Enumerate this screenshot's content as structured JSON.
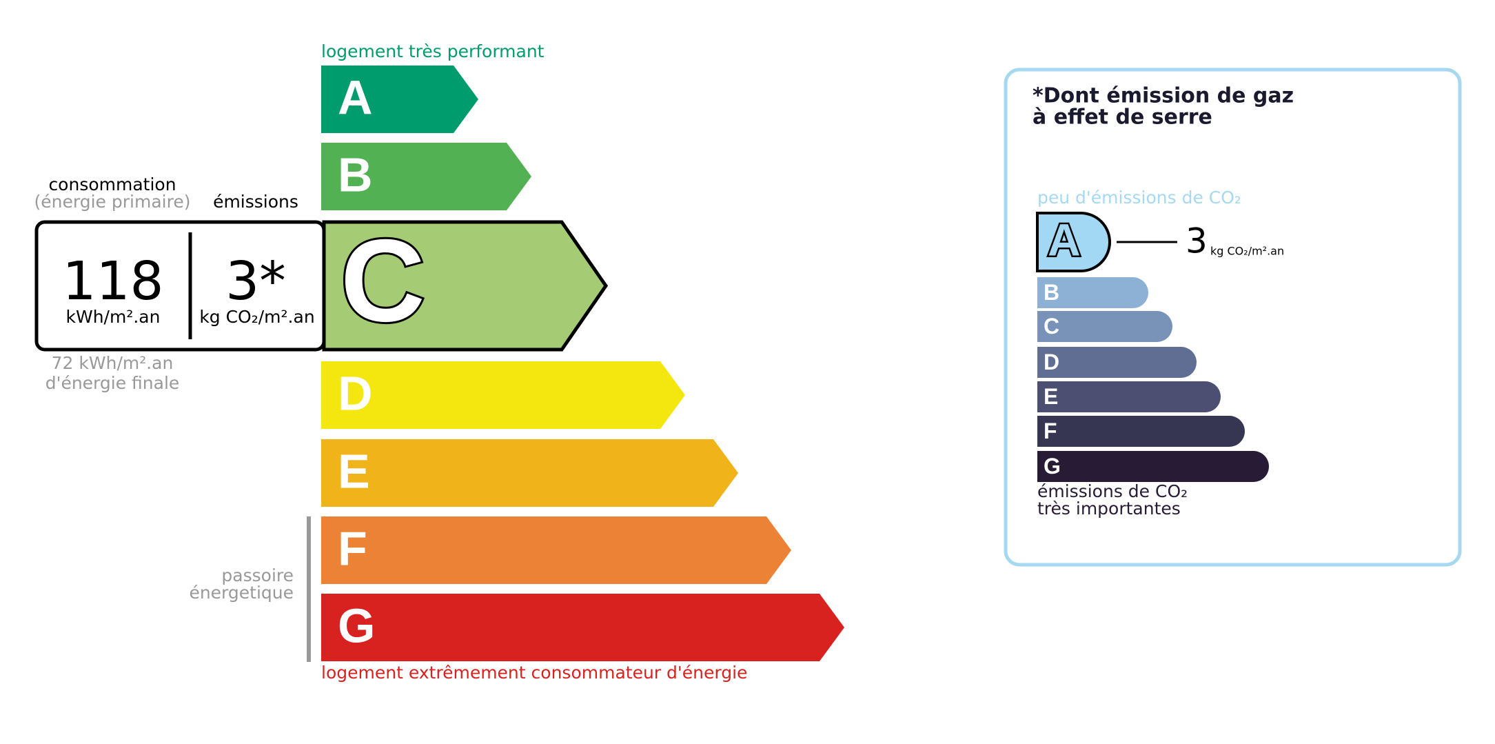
{
  "energy": {
    "top_label": "logement très performant",
    "bottom_label": "logement extrêmement consommateur d'énergie",
    "classes": [
      "A",
      "B",
      "C",
      "D",
      "E",
      "F",
      "G"
    ],
    "rating": "C",
    "colors": [
      "#009c6d",
      "#52b153",
      "#a5cc74",
      "#f4e70f",
      "#f0b41a",
      "#eb8235",
      "#d7221f"
    ]
  },
  "summary": {
    "consumption_heading": "consommation",
    "consumption_sub": "(énergie primaire)",
    "emissions_heading": "émissions",
    "consumption_value": "118",
    "consumption_unit": "kWh/m².an",
    "emissions_value": "3*",
    "emissions_unit": "kg CO₂/m².an",
    "final_line1": "72 kWh/m².an",
    "final_line2": "d'énergie finale",
    "passoire_line1": "passoire",
    "passoire_line2": "énergetique"
  },
  "ges": {
    "title_line1": "*Dont émission de gaz",
    "title_line2": "à effet de serre",
    "top_label": "peu d'émissions de CO₂",
    "classes": [
      "A",
      "B",
      "C",
      "D",
      "E",
      "F",
      "G"
    ],
    "rating": "A",
    "colors": [
      "#a3d8f4",
      "#8db1d4",
      "#7893b7",
      "#5f6e92",
      "#4c4f71",
      "#363552",
      "#281b35"
    ],
    "value": "3",
    "unit": "kg CO₂/m².an",
    "bottom_line1": "émissions de CO₂",
    "bottom_line2": "très importantes"
  }
}
